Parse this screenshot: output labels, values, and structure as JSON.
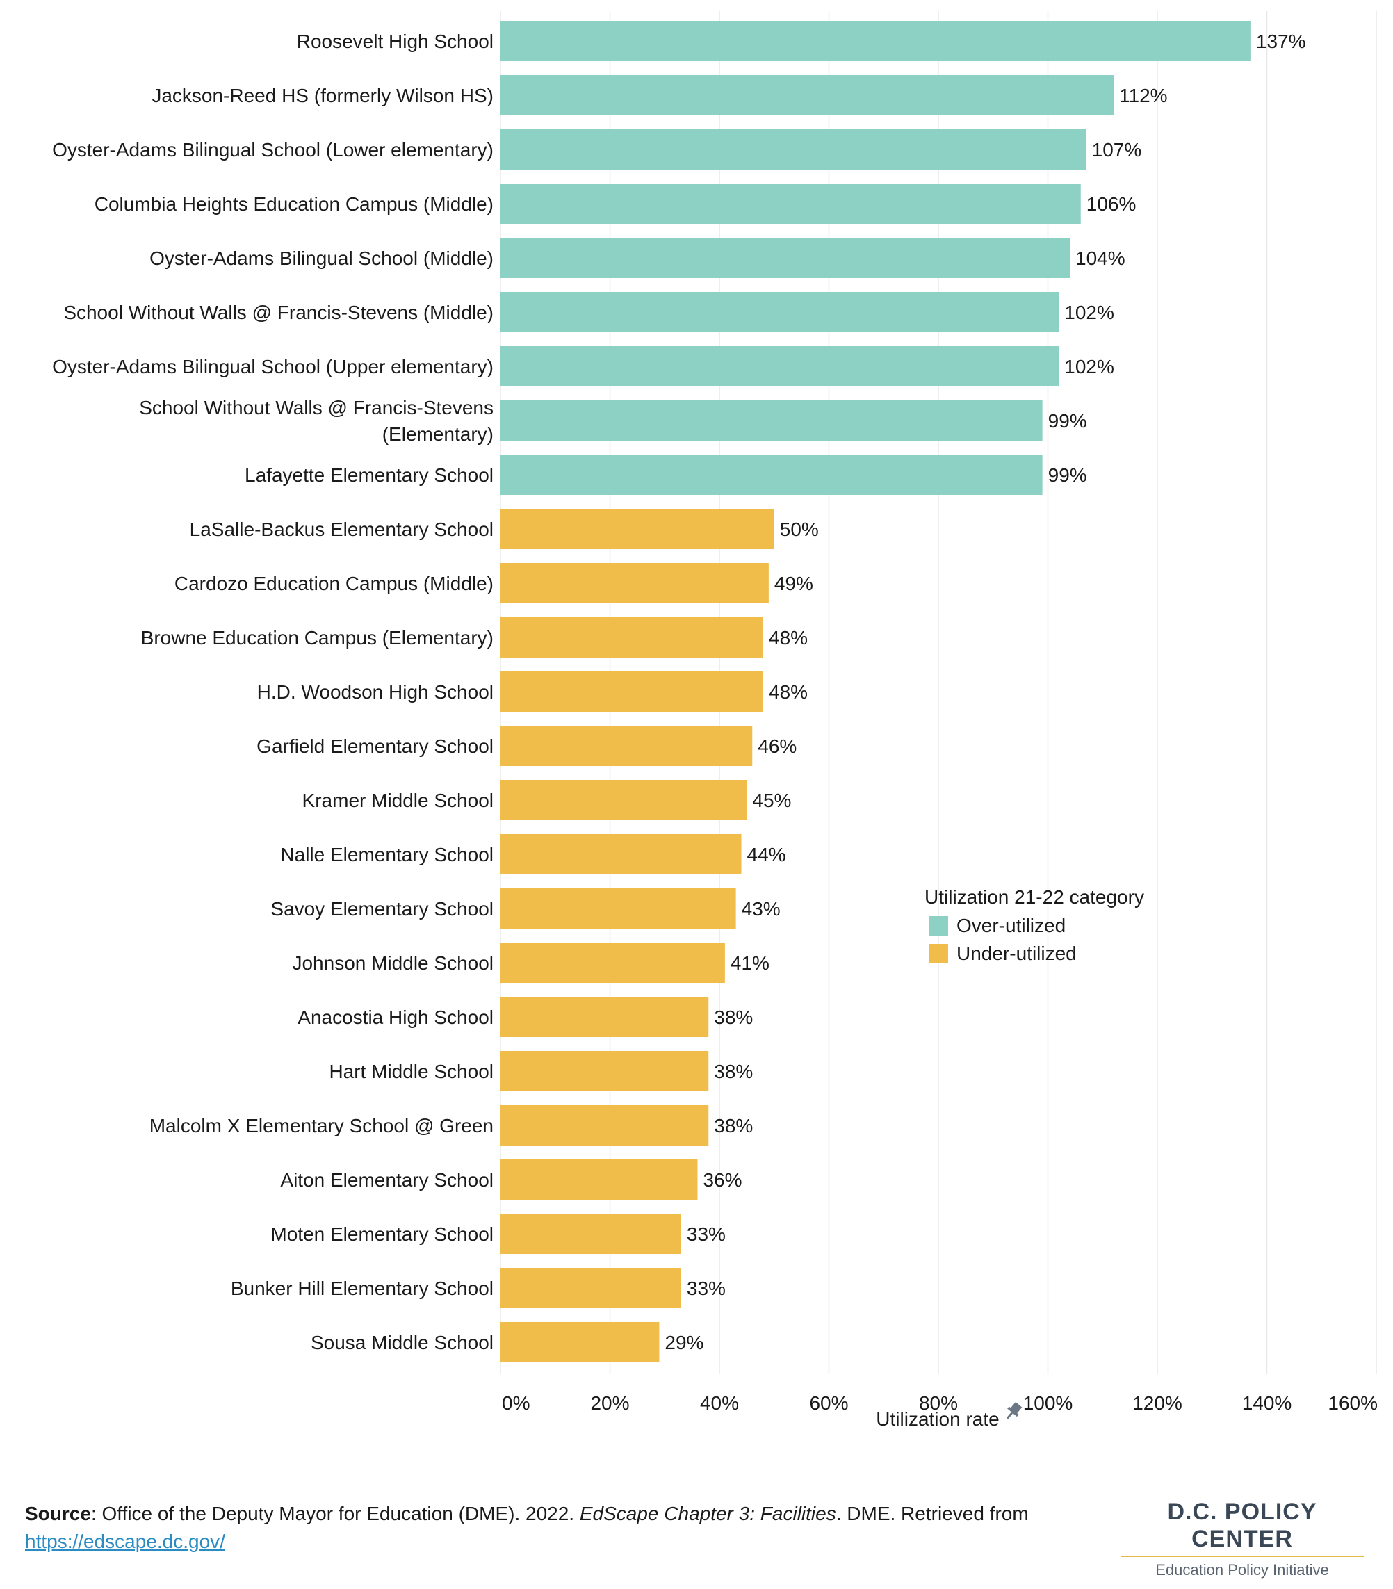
{
  "chart_data": {
    "type": "bar",
    "orientation": "horizontal",
    "categories": [
      "Roosevelt High School",
      "Jackson-Reed HS (formerly Wilson HS)",
      "Oyster-Adams Bilingual School (Lower elementary)",
      "Columbia Heights Education Campus (Middle)",
      "Oyster-Adams Bilingual School (Middle)",
      "School Without Walls @ Francis-Stevens (Middle)",
      "Oyster-Adams Bilingual School (Upper elementary)",
      "School Without Walls @ Francis-Stevens (Elementary)",
      "Lafayette Elementary School",
      "LaSalle-Backus Elementary School",
      "Cardozo Education Campus (Middle)",
      "Browne Education Campus (Elementary)",
      "H.D. Woodson High School",
      "Garfield Elementary School",
      "Kramer Middle School",
      "Nalle Elementary School",
      "Savoy Elementary School",
      "Johnson Middle School",
      "Anacostia High School",
      "Hart Middle School",
      "Malcolm X Elementary School @ Green",
      "Aiton Elementary School",
      "Moten Elementary School",
      "Bunker Hill Elementary School",
      "Sousa Middle School"
    ],
    "category_lines": [
      [
        "Roosevelt High School"
      ],
      [
        "Jackson-Reed HS (formerly Wilson HS)"
      ],
      [
        "Oyster-Adams Bilingual School (Lower elementary)"
      ],
      [
        "Columbia Heights Education Campus (Middle)"
      ],
      [
        "Oyster-Adams Bilingual School (Middle)"
      ],
      [
        "School Without Walls @ Francis-Stevens (Middle)"
      ],
      [
        "Oyster-Adams Bilingual School (Upper elementary)"
      ],
      [
        "School Without Walls @ Francis-Stevens",
        "(Elementary)"
      ],
      [
        "Lafayette Elementary School"
      ],
      [
        "LaSalle-Backus Elementary School"
      ],
      [
        "Cardozo Education Campus (Middle)"
      ],
      [
        "Browne Education Campus (Elementary)"
      ],
      [
        "H.D. Woodson High School"
      ],
      [
        "Garfield Elementary School"
      ],
      [
        "Kramer Middle School"
      ],
      [
        "Nalle Elementary School"
      ],
      [
        "Savoy Elementary School"
      ],
      [
        "Johnson Middle School"
      ],
      [
        "Anacostia High School"
      ],
      [
        "Hart Middle School"
      ],
      [
        "Malcolm X Elementary School @ Green"
      ],
      [
        "Aiton Elementary School"
      ],
      [
        "Moten Elementary School"
      ],
      [
        "Bunker Hill Elementary School"
      ],
      [
        "Sousa Middle School"
      ]
    ],
    "values": [
      137,
      112,
      107,
      106,
      104,
      102,
      102,
      99,
      99,
      50,
      49,
      48,
      48,
      46,
      45,
      44,
      43,
      41,
      38,
      38,
      38,
      36,
      33,
      33,
      29
    ],
    "value_labels": [
      "137%",
      "112%",
      "107%",
      "106%",
      "104%",
      "102%",
      "102%",
      "99%",
      "99%",
      "50%",
      "49%",
      "48%",
      "48%",
      "46%",
      "45%",
      "44%",
      "43%",
      "41%",
      "38%",
      "38%",
      "38%",
      "36%",
      "33%",
      "33%",
      "29%"
    ],
    "categories_group": [
      "Over-utilized",
      "Over-utilized",
      "Over-utilized",
      "Over-utilized",
      "Over-utilized",
      "Over-utilized",
      "Over-utilized",
      "Over-utilized",
      "Over-utilized",
      "Under-utilized",
      "Under-utilized",
      "Under-utilized",
      "Under-utilized",
      "Under-utilized",
      "Under-utilized",
      "Under-utilized",
      "Under-utilized",
      "Under-utilized",
      "Under-utilized",
      "Under-utilized",
      "Under-utilized",
      "Under-utilized",
      "Under-utilized",
      "Under-utilized",
      "Under-utilized"
    ],
    "xlabel": "Utilization rate",
    "xlim": [
      0,
      160
    ],
    "xticks": [
      0,
      20,
      40,
      60,
      80,
      100,
      120,
      140,
      160
    ],
    "xtick_labels": [
      "0%",
      "20%",
      "40%",
      "60%",
      "80%",
      "100%",
      "120%",
      "140%",
      "160%"
    ],
    "grid": true,
    "legend": {
      "title": "Utilization 21-22 category",
      "position": "right",
      "entries": [
        {
          "name": "Over-utilized",
          "color": "#8dd1c4"
        },
        {
          "name": "Under-utilized",
          "color": "#f0bd4a"
        }
      ]
    },
    "colors": {
      "Over-utilized": "#8dd1c4",
      "Under-utilized": "#f0bd4a"
    }
  },
  "xlabel_icon": "pin-icon",
  "source": {
    "label": "Source",
    "text_before": ": Office of the Deputy Mayor for Education (DME). 2022. ",
    "title": "EdScape Chapter 3: Facilities",
    "text_after": ". DME. Retrieved from",
    "url": "https://edscape.dc.gov/"
  },
  "logo": {
    "name": "D.C. POLICY CENTER",
    "subtitle": "Education Policy Initiative"
  }
}
